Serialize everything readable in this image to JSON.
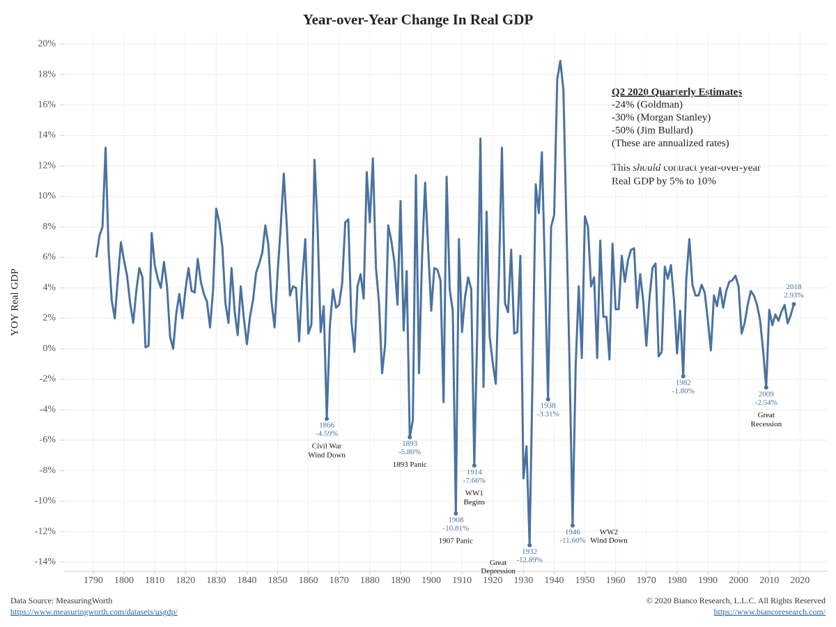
{
  "chart_data": {
    "type": "line",
    "title": "Year-over-Year Change In Real GDP",
    "ylabel": "YOY Real GDP",
    "x": [
      1791,
      1792,
      1793,
      1794,
      1795,
      1796,
      1797,
      1798,
      1799,
      1800,
      1801,
      1802,
      1803,
      1804,
      1805,
      1806,
      1807,
      1808,
      1809,
      1810,
      1811,
      1812,
      1813,
      1814,
      1815,
      1816,
      1817,
      1818,
      1819,
      1820,
      1821,
      1822,
      1823,
      1824,
      1825,
      1826,
      1827,
      1828,
      1829,
      1830,
      1831,
      1832,
      1833,
      1834,
      1835,
      1836,
      1837,
      1838,
      1839,
      1840,
      1841,
      1842,
      1843,
      1844,
      1845,
      1846,
      1847,
      1848,
      1849,
      1850,
      1851,
      1852,
      1853,
      1854,
      1855,
      1856,
      1857,
      1858,
      1859,
      1860,
      1861,
      1862,
      1863,
      1864,
      1865,
      1866,
      1867,
      1868,
      1869,
      1870,
      1871,
      1872,
      1873,
      1874,
      1875,
      1876,
      1877,
      1878,
      1879,
      1880,
      1881,
      1882,
      1883,
      1884,
      1885,
      1886,
      1887,
      1888,
      1889,
      1890,
      1891,
      1892,
      1893,
      1894,
      1895,
      1896,
      1897,
      1898,
      1899,
      1900,
      1901,
      1902,
      1903,
      1904,
      1905,
      1906,
      1907,
      1908,
      1909,
      1910,
      1911,
      1912,
      1913,
      1914,
      1915,
      1916,
      1917,
      1918,
      1919,
      1920,
      1921,
      1922,
      1923,
      1924,
      1925,
      1926,
      1927,
      1928,
      1929,
      1930,
      1931,
      1932,
      1933,
      1934,
      1935,
      1936,
      1937,
      1938,
      1939,
      1940,
      1941,
      1942,
      1943,
      1944,
      1945,
      1946,
      1947,
      1948,
      1949,
      1950,
      1951,
      1952,
      1953,
      1954,
      1955,
      1956,
      1957,
      1958,
      1959,
      1960,
      1961,
      1962,
      1963,
      1964,
      1965,
      1966,
      1967,
      1968,
      1969,
      1970,
      1971,
      1972,
      1973,
      1974,
      1975,
      1976,
      1977,
      1978,
      1979,
      1980,
      1981,
      1982,
      1983,
      1984,
      1985,
      1986,
      1987,
      1988,
      1989,
      1990,
      1991,
      1992,
      1993,
      1994,
      1995,
      1996,
      1997,
      1998,
      1999,
      2000,
      2001,
      2002,
      2003,
      2004,
      2005,
      2006,
      2007,
      2008,
      2009,
      2010,
      2011,
      2012,
      2013,
      2014,
      2015,
      2016,
      2017,
      2018
    ],
    "series": [
      {
        "color": "#4a72a0",
        "values": [
          6.0,
          7.4,
          8.0,
          13.2,
          6.4,
          3.2,
          2.0,
          4.6,
          7.0,
          5.8,
          4.8,
          3.0,
          1.7,
          3.8,
          5.3,
          4.7,
          0.1,
          0.2,
          7.6,
          5.5,
          4.6,
          4.0,
          5.7,
          4.1,
          0.8,
          0.0,
          2.3,
          3.6,
          2.0,
          3.9,
          5.3,
          3.8,
          3.7,
          5.9,
          4.4,
          3.6,
          3.1,
          1.4,
          3.9,
          9.2,
          8.3,
          6.7,
          3.0,
          1.7,
          5.3,
          2.5,
          0.9,
          4.1,
          2.0,
          0.3,
          2.1,
          3.2,
          5.0,
          5.6,
          6.3,
          8.1,
          6.8,
          3.1,
          1.4,
          5.0,
          8.0,
          11.5,
          8.0,
          3.5,
          4.1,
          4.0,
          0.5,
          4.5,
          7.2,
          1.0,
          1.6,
          12.4,
          8.0,
          1.1,
          2.8,
          -4.59,
          1.5,
          3.9,
          2.7,
          2.9,
          4.3,
          8.3,
          8.5,
          1.8,
          -0.2,
          4.1,
          4.9,
          3.3,
          11.6,
          8.3,
          12.5,
          5.3,
          3.0,
          -1.6,
          0.3,
          8.1,
          7.1,
          5.7,
          2.9,
          9.7,
          1.2,
          5.1,
          -5.8,
          -4.7,
          11.4,
          -1.6,
          6.0,
          10.9,
          6.5,
          2.5,
          5.3,
          5.2,
          4.5,
          -3.5,
          11.3,
          3.9,
          2.5,
          -10.81,
          7.2,
          1.1,
          3.4,
          4.7,
          3.9,
          -7.66,
          1.5,
          13.8,
          -2.5,
          9.0,
          0.8,
          -0.9,
          -2.3,
          4.7,
          13.2,
          3.0,
          2.4,
          6.5,
          1.0,
          1.1,
          6.1,
          -8.5,
          -6.4,
          -12.89,
          -1.3,
          10.8,
          8.9,
          12.9,
          5.1,
          -3.31,
          8.0,
          8.8,
          17.7,
          18.9,
          17.0,
          8.0,
          -1.0,
          -11.6,
          -1.1,
          4.1,
          -0.6,
          8.7,
          8.0,
          4.1,
          4.7,
          -0.6,
          7.1,
          2.1,
          2.1,
          -0.7,
          6.9,
          2.6,
          2.6,
          6.1,
          4.4,
          5.8,
          6.5,
          6.6,
          2.7,
          4.9,
          3.1,
          0.2,
          3.3,
          5.3,
          5.6,
          -0.5,
          -0.2,
          5.4,
          4.6,
          5.5,
          3.2,
          -0.3,
          2.5,
          -1.8,
          4.6,
          7.2,
          4.2,
          3.5,
          3.5,
          4.2,
          3.7,
          1.9,
          -0.1,
          3.5,
          2.8,
          4.0,
          2.7,
          3.8,
          4.4,
          4.5,
          4.8,
          4.1,
          1.0,
          1.7,
          2.9,
          3.8,
          3.5,
          2.9,
          1.9,
          -0.1,
          -2.54,
          2.56,
          1.55,
          2.25,
          1.84,
          2.45,
          2.88,
          1.67,
          2.22,
          2.93
        ]
      }
    ],
    "xlim": [
      1780.5,
      2029
    ],
    "ylim": [
      -14.6,
      20.7
    ],
    "xticks": [
      1790,
      1800,
      1810,
      1820,
      1830,
      1840,
      1850,
      1860,
      1870,
      1880,
      1890,
      1900,
      1910,
      1920,
      1930,
      1940,
      1950,
      1960,
      1970,
      1980,
      1990,
      2000,
      2010,
      2020
    ],
    "yticks": [
      {
        "value": -14,
        "label": "-14%"
      },
      {
        "value": -12,
        "label": "-12%"
      },
      {
        "value": -10,
        "label": "-10%"
      },
      {
        "value": -8,
        "label": "-8%"
      },
      {
        "value": -6,
        "label": "-6%"
      },
      {
        "value": -4,
        "label": "-4%"
      },
      {
        "value": -2,
        "label": "-2%"
      },
      {
        "value": 0,
        "label": "0%"
      },
      {
        "value": 2,
        "label": "2%"
      },
      {
        "value": 4,
        "label": "4%"
      },
      {
        "value": 6,
        "label": "6%"
      },
      {
        "value": 8,
        "label": "8%"
      },
      {
        "value": 10,
        "label": "10%"
      },
      {
        "value": 12,
        "label": "12%"
      },
      {
        "value": 14,
        "label": "14%"
      },
      {
        "value": 16,
        "label": "16%"
      },
      {
        "value": 18,
        "label": "18%"
      },
      {
        "value": 20,
        "label": "20%"
      }
    ],
    "grid": true,
    "annotations": [
      {
        "x": 1866,
        "value_label": "-4.59%",
        "note": [
          "Civil War",
          "Wind Down"
        ]
      },
      {
        "x": 1893,
        "value_label": "-5.80%",
        "note": [
          "1893 Panic"
        ]
      },
      {
        "x": 1908,
        "value_label": "-10.81%",
        "note": [
          "1907 Panic"
        ]
      },
      {
        "x": 1914,
        "value_label": "-7.66%",
        "note": [
          "WW1",
          "Begins"
        ]
      },
      {
        "x": 1932,
        "value_label": "-12.89%",
        "note": [
          "Great",
          "Depression"
        ]
      },
      {
        "x": 1938,
        "value_label": "-3.31%"
      },
      {
        "x": 1946,
        "value_label": "-11.60%",
        "note": [
          "WW2",
          "Wind Down"
        ]
      },
      {
        "x": 1982,
        "value_label": "-1.80%"
      },
      {
        "x": 2009,
        "value_label": "-2.54%",
        "note": [
          "Great",
          "Recession"
        ]
      },
      {
        "x": 2018,
        "value_label": "2.93%"
      }
    ],
    "text_box": {
      "title": "Q2 2020 Quarterly Estimates",
      "lines": [
        "-24% (Goldman)",
        "-30% (Morgan Stanley)",
        "-50% (Jim Bullard)",
        "(These are annualized rates)"
      ],
      "note_parts": [
        "This ",
        "should",
        " contract year-over-year"
      ],
      "note_line2": "Real GDP by 5% to 10%"
    },
    "source": "Data Source: MeasuringWorth",
    "source_url": "https://www.measuringworth.com/datasets/usgdp/",
    "copyright": "© 2020 Bianco Research, L.L.C. All Rights Reserved",
    "copyright_url": "https://www.biancoresearch.com/"
  }
}
